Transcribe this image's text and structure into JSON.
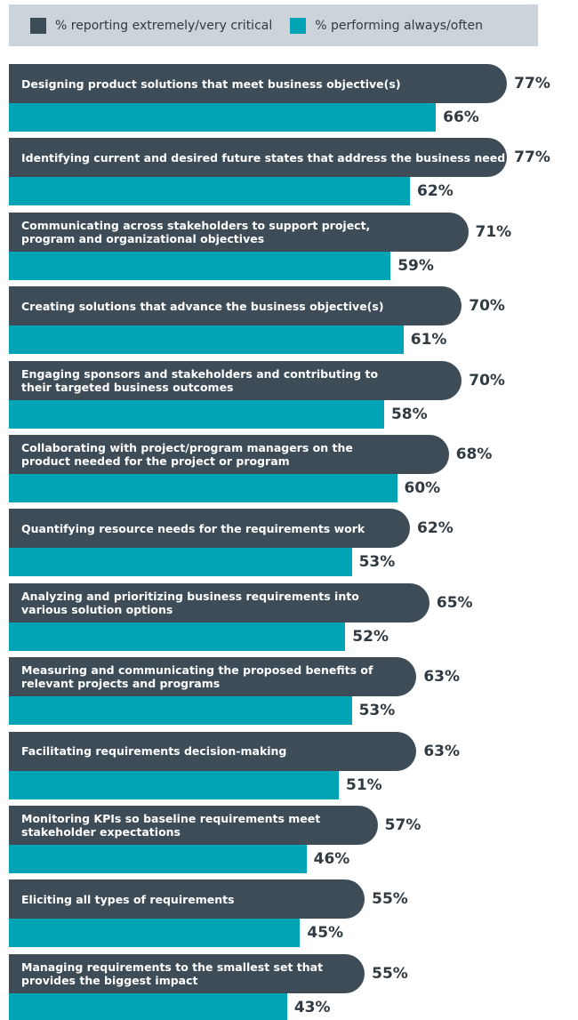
{
  "chart_data": {
    "type": "bar",
    "orientation": "horizontal",
    "categories": [
      "Designing product solutions that meet business objective(s)",
      "Identifying current and desired future states that address the business need",
      "Communicating across stakeholders to support project,\nprogram and organizational objectives",
      "Creating solutions that advance the business objective(s)",
      "Engaging sponsors and stakeholders and contributing to\ntheir targeted business outcomes",
      "Collaborating with project/program managers on the\nproduct needed for the project or program",
      "Quantifying resource needs for the requirements work",
      "Analyzing and prioritizing business requirements into\nvarious solution options",
      "Measuring and communicating the proposed benefits of\nrelevant projects and programs",
      "Facilitating requirements decision-making",
      "Monitoring KPIs so baseline requirements meet\nstakeholder expectations",
      "Eliciting all types of requirements",
      "Managing requirements to the smallest set that\nprovides the biggest impact"
    ],
    "series": [
      {
        "name": "% reporting extremely/very critical",
        "color": "#3e4c57",
        "values": [
          77,
          77,
          71,
          70,
          70,
          68,
          62,
          65,
          63,
          63,
          57,
          55,
          55
        ],
        "value_labels": [
          "77%",
          "77%",
          "71%",
          "70%",
          "70%",
          "68%",
          "62%",
          "65%",
          "63%",
          "63%",
          "57%",
          "55%",
          "55%"
        ]
      },
      {
        "name": "% performing always/often",
        "color": "#00a4b4",
        "values": [
          66,
          62,
          59,
          61,
          58,
          60,
          53,
          52,
          53,
          51,
          46,
          45,
          43
        ],
        "value_labels": [
          "66%",
          "62%",
          "59%",
          "61%",
          "58%",
          "60%",
          "53%",
          "52%",
          "53%",
          "51%",
          "46%",
          "45%",
          "43%"
        ]
      }
    ],
    "xlim": [
      0,
      80
    ],
    "legend": "top"
  }
}
